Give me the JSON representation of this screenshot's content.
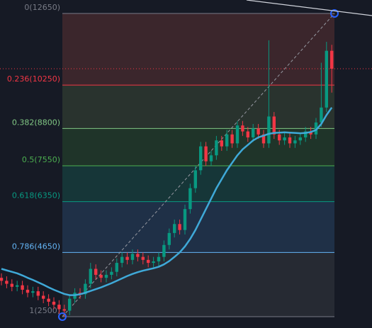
{
  "chart_data": {
    "type": "candlestick",
    "ylim": [
      2120,
      13100
    ],
    "up_color": "#089981",
    "down_color": "#f23645",
    "candles": {
      "open": [
        3800,
        3700,
        3600,
        3500,
        3550,
        3400,
        3300,
        3350,
        3200,
        3100,
        3000,
        2900,
        2750,
        2700,
        3100,
        3300,
        3250,
        3600,
        4100,
        3900,
        3800,
        3900,
        4000,
        4300,
        4500,
        4400,
        4600,
        4500,
        4400,
        4300,
        4350,
        4500,
        4900,
        5300,
        5600,
        5400,
        6100,
        6800,
        7400,
        8200,
        7700,
        7900,
        8400,
        8200,
        8600,
        8300,
        8900,
        8700,
        8500,
        8800,
        8600,
        8300,
        9200,
        8600,
        8400,
        8500,
        8300,
        8400,
        8500,
        8700,
        8600,
        9000,
        9500,
        11400
      ],
      "high": [
        3950,
        3850,
        3750,
        3700,
        3700,
        3550,
        3500,
        3500,
        3350,
        3250,
        3150,
        3050,
        2900,
        3250,
        3450,
        3450,
        3750,
        4300,
        4250,
        4050,
        4050,
        4150,
        4450,
        4650,
        4650,
        4750,
        4750,
        4650,
        4550,
        4500,
        4650,
        5050,
        5450,
        5750,
        5750,
        6250,
        6950,
        7550,
        8350,
        8350,
        8050,
        8550,
        8550,
        8750,
        8750,
        9050,
        9050,
        8850,
        8950,
        8950,
        8750,
        11750,
        9350,
        8750,
        8650,
        8650,
        8550,
        8650,
        8850,
        8850,
        9150,
        11000,
        11700,
        11600
      ],
      "low": [
        3550,
        3450,
        3350,
        3350,
        3250,
        3150,
        3150,
        3050,
        2950,
        2850,
        2750,
        2600,
        2500,
        2550,
        2950,
        3100,
        3100,
        3450,
        3750,
        3650,
        3650,
        3750,
        3850,
        4150,
        4250,
        4250,
        4350,
        4250,
        4150,
        4150,
        4200,
        4350,
        4750,
        5150,
        5250,
        5250,
        5950,
        6650,
        7250,
        7550,
        7550,
        7750,
        8050,
        8050,
        8150,
        8150,
        8550,
        8350,
        8350,
        8450,
        8150,
        8150,
        8450,
        8250,
        8250,
        8150,
        8150,
        8250,
        8350,
        8450,
        8450,
        8850,
        9350,
        10000
      ],
      "close": [
        3700,
        3600,
        3500,
        3550,
        3400,
        3300,
        3350,
        3200,
        3100,
        3000,
        2900,
        2750,
        2700,
        3100,
        3300,
        3250,
        3600,
        4100,
        3900,
        3800,
        3900,
        4000,
        4300,
        4500,
        4400,
        4600,
        4500,
        4400,
        4300,
        4350,
        4500,
        4900,
        5300,
        5600,
        5400,
        6100,
        6800,
        7400,
        8200,
        7700,
        7900,
        8400,
        8200,
        8600,
        8300,
        8900,
        8700,
        8500,
        8800,
        8600,
        8300,
        9200,
        8600,
        8400,
        8500,
        8300,
        8400,
        8500,
        8700,
        8600,
        9000,
        9500,
        11400,
        10800
      ]
    },
    "moving_average": {
      "color": "#3fa9d8",
      "values": [
        4100,
        4050,
        4000,
        3950,
        3880,
        3800,
        3730,
        3650,
        3570,
        3480,
        3400,
        3330,
        3260,
        3220,
        3220,
        3250,
        3300,
        3360,
        3420,
        3480,
        3550,
        3620,
        3700,
        3780,
        3860,
        3930,
        3990,
        4040,
        4080,
        4120,
        4170,
        4250,
        4360,
        4500,
        4650,
        4850,
        5100,
        5400,
        5750,
        6100,
        6450,
        6800,
        7100,
        7400,
        7650,
        7900,
        8100,
        8250,
        8400,
        8500,
        8560,
        8620,
        8650,
        8660,
        8670,
        8660,
        8650,
        8640,
        8650,
        8680,
        8750,
        8950,
        9250,
        9500
      ]
    },
    "fib_levels": [
      {
        "label": "0(12650)",
        "value": 12650,
        "color": "#787b86",
        "fill": "#3b262c"
      },
      {
        "label": "0.236(10250)",
        "value": 10250,
        "color": "#f23645",
        "fill": "#29332e"
      },
      {
        "label": "0.382(8800)",
        "value": 8800,
        "color": "#81c784",
        "fill": "#1f3429"
      },
      {
        "label": "0.5(7550)",
        "value": 7550,
        "color": "#4caf50",
        "fill": "#163638"
      },
      {
        "label": "0.618(6350)",
        "value": 6350,
        "color": "#089981",
        "fill": "#1f3047"
      },
      {
        "label": "0.786(4650)",
        "value": 4650,
        "color": "#64b5f6",
        "fill": "#262a33"
      },
      {
        "label": "1(2500)",
        "value": 2500,
        "color": "#787b86"
      }
    ]
  }
}
